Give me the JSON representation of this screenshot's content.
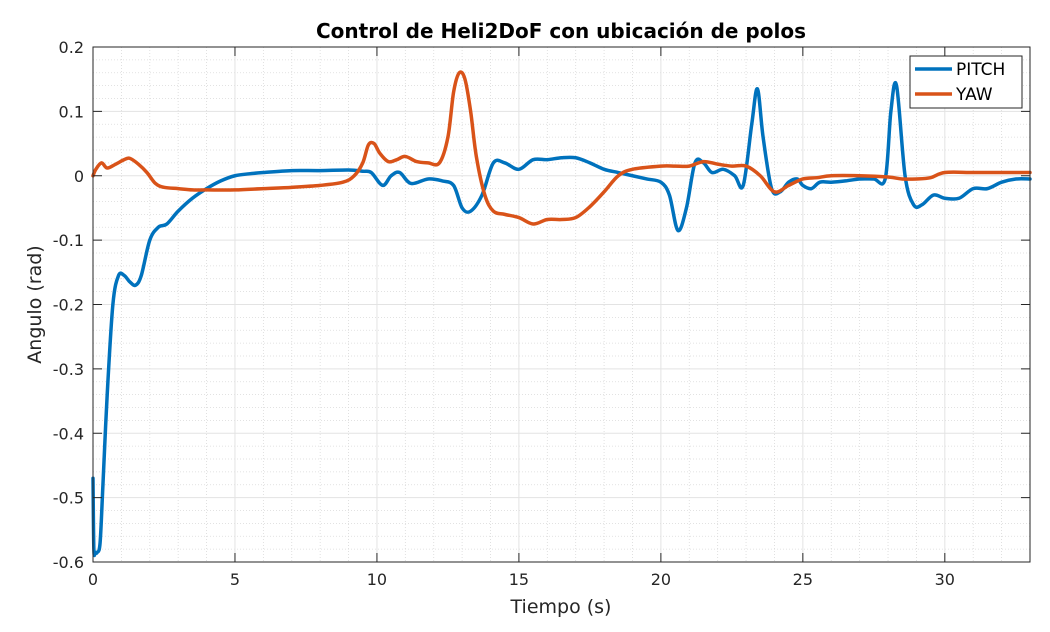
{
  "chart_data": {
    "type": "line",
    "title": "Control de Heli2DoF con ubicación de polos",
    "xlabel": "Tiempo (s)",
    "ylabel": "Angulo (rad)",
    "xlim": [
      0,
      33
    ],
    "ylim": [
      -0.6,
      0.2
    ],
    "xticks": [
      0,
      5,
      10,
      15,
      20,
      25,
      30
    ],
    "xtick_labels": [
      "0",
      "5",
      "10",
      "15",
      "20",
      "25",
      "30"
    ],
    "yticks": [
      -0.6,
      -0.5,
      -0.4,
      -0.3,
      -0.2,
      -0.1,
      0,
      0.1,
      0.2
    ],
    "ytick_labels": [
      "-0.6",
      "-0.5",
      "-0.4",
      "-0.3",
      "-0.2",
      "-0.1",
      "0",
      "0.1",
      "0.2"
    ],
    "grid": true,
    "minor_grid": true,
    "legend_position": "top-right",
    "series": [
      {
        "name": "PITCH",
        "color": "#0072BD",
        "x": [
          0,
          0.03,
          0.08,
          0.15,
          0.25,
          0.35,
          0.5,
          0.7,
          0.9,
          1.1,
          1.3,
          1.5,
          1.7,
          2.0,
          2.3,
          2.6,
          3.0,
          3.5,
          4.0,
          4.5,
          5.0,
          5.5,
          6.0,
          7.0,
          8.0,
          9.0,
          9.5,
          9.8,
          10.2,
          10.5,
          10.8,
          11.2,
          11.8,
          12.3,
          12.7,
          13.0,
          13.3,
          13.7,
          14.1,
          14.5,
          15.0,
          15.5,
          16.0,
          16.5,
          17.0,
          17.5,
          18.0,
          18.5,
          19.0,
          19.5,
          20.0,
          20.3,
          20.6,
          20.9,
          21.2,
          21.5,
          21.8,
          22.2,
          22.6,
          22.9,
          23.2,
          23.4,
          23.6,
          23.9,
          24.2,
          24.5,
          24.8,
          25.0,
          25.3,
          25.6,
          26.0,
          26.5,
          27.0,
          27.5,
          27.9,
          28.1,
          28.3,
          28.6,
          28.9,
          29.2,
          29.6,
          30.0,
          30.5,
          31.0,
          31.5,
          32.0,
          32.5,
          33.0
        ],
        "y": [
          -0.47,
          -0.58,
          -0.585,
          -0.585,
          -0.57,
          -0.48,
          -0.34,
          -0.2,
          -0.155,
          -0.155,
          -0.165,
          -0.17,
          -0.155,
          -0.1,
          -0.08,
          -0.075,
          -0.055,
          -0.035,
          -0.02,
          -0.008,
          0.0,
          0.003,
          0.005,
          0.008,
          0.008,
          0.009,
          0.007,
          0.005,
          -0.015,
          0.0,
          0.005,
          -0.012,
          -0.005,
          -0.008,
          -0.015,
          -0.05,
          -0.055,
          -0.03,
          0.02,
          0.02,
          0.01,
          0.025,
          0.025,
          0.028,
          0.028,
          0.02,
          0.01,
          0.005,
          0.0,
          -0.005,
          -0.01,
          -0.03,
          -0.085,
          -0.05,
          0.02,
          0.02,
          0.005,
          0.01,
          0.0,
          -0.015,
          0.08,
          0.135,
          0.06,
          -0.02,
          -0.025,
          -0.01,
          -0.005,
          -0.015,
          -0.02,
          -0.01,
          -0.01,
          -0.008,
          -0.005,
          -0.005,
          -0.005,
          0.1,
          0.14,
          0.0,
          -0.045,
          -0.045,
          -0.03,
          -0.035,
          -0.035,
          -0.02,
          -0.02,
          -0.01,
          -0.005,
          -0.005
        ]
      },
      {
        "name": "YAW",
        "color": "#D95319",
        "x": [
          0,
          0.1,
          0.3,
          0.5,
          0.8,
          1.1,
          1.3,
          1.6,
          1.9,
          2.2,
          2.5,
          3.0,
          3.5,
          4.0,
          5.0,
          6.0,
          7.0,
          8.0,
          8.8,
          9.2,
          9.5,
          9.7,
          9.9,
          10.1,
          10.4,
          10.7,
          11.0,
          11.4,
          11.8,
          12.2,
          12.5,
          12.7,
          12.9,
          13.1,
          13.3,
          13.5,
          13.8,
          14.1,
          14.5,
          15.0,
          15.5,
          16.0,
          16.5,
          17.0,
          17.5,
          18.0,
          18.5,
          19.0,
          20.0,
          20.5,
          21.0,
          21.5,
          22.0,
          22.5,
          23.0,
          23.5,
          24.0,
          24.5,
          25.0,
          25.5,
          26.0,
          27.0,
          28.0,
          28.5,
          29.0,
          29.5,
          30.0,
          31.0,
          32.0,
          33.0
        ],
        "y": [
          0.0,
          0.01,
          0.02,
          0.012,
          0.018,
          0.025,
          0.027,
          0.018,
          0.005,
          -0.012,
          -0.018,
          -0.02,
          -0.022,
          -0.022,
          -0.022,
          -0.02,
          -0.018,
          -0.015,
          -0.01,
          0.0,
          0.02,
          0.048,
          0.05,
          0.035,
          0.022,
          0.025,
          0.03,
          0.022,
          0.02,
          0.02,
          0.06,
          0.13,
          0.16,
          0.15,
          0.1,
          0.03,
          -0.03,
          -0.055,
          -0.06,
          -0.065,
          -0.075,
          -0.068,
          -0.068,
          -0.065,
          -0.048,
          -0.025,
          0.0,
          0.01,
          0.015,
          0.015,
          0.015,
          0.022,
          0.018,
          0.015,
          0.015,
          0.0,
          -0.025,
          -0.015,
          -0.005,
          -0.003,
          0.0,
          0.0,
          -0.002,
          -0.005,
          -0.005,
          -0.003,
          0.005,
          0.005,
          0.005,
          0.005
        ]
      }
    ]
  }
}
